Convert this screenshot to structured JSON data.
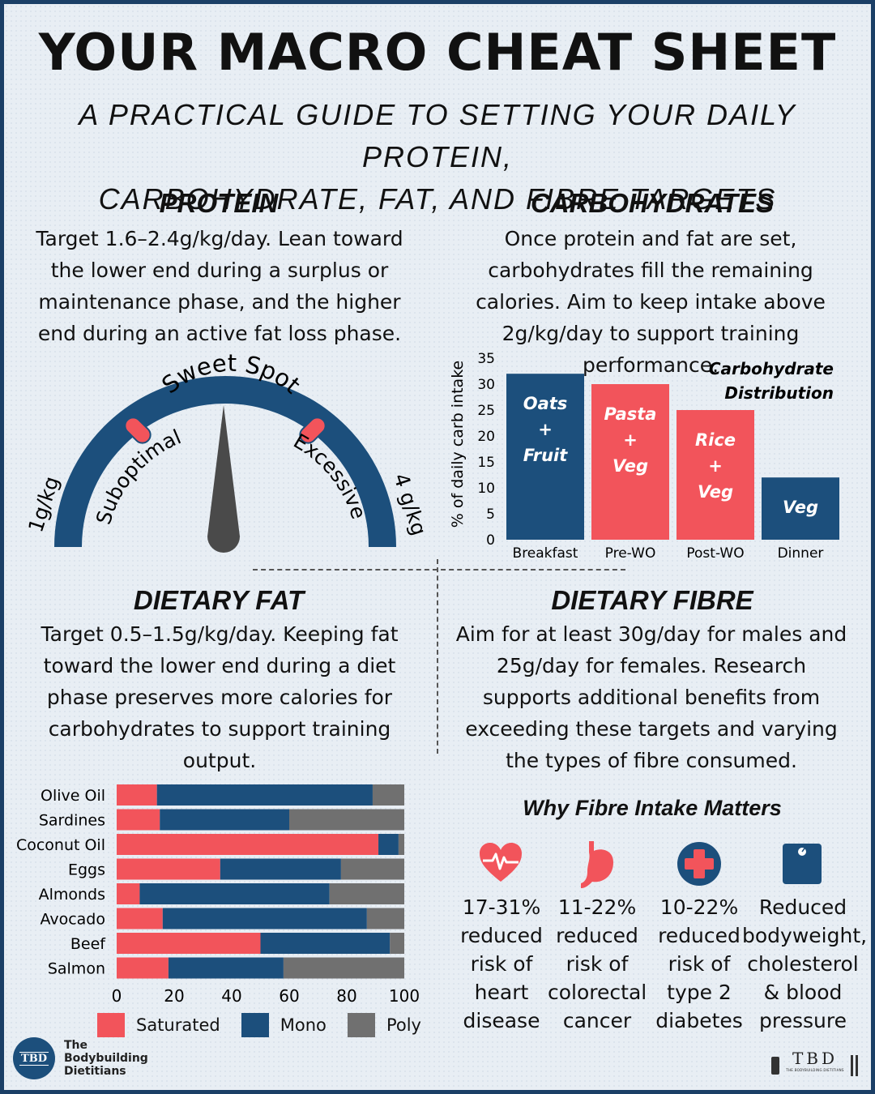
{
  "header": {
    "title": "YOUR MACRO CHEAT SHEET",
    "subtitle_line1": "A PRACTICAL GUIDE TO SETTING YOUR DAILY PROTEIN,",
    "subtitle_line2": "CARBOHYDRATE, FAT, AND FIBRE TARGETS"
  },
  "protein": {
    "heading": "PROTEIN",
    "body": "Target 1.6–2.4g/kg/day. Lean toward the lower end during a surplus or maintenance phase, and the higher end during an active fat loss phase.",
    "gauge": {
      "top_label": "Sweet Spot",
      "left_label": "1g/kg",
      "right_label": "4 g/kg",
      "suboptimal_label": "Suboptimal",
      "excessive_label": "Excessive"
    }
  },
  "carbs": {
    "heading": "CARBOHYDRATES",
    "body": "Once protein and fat are set, carbohydrates fill the remaining calories. Aim to keep intake above 2g/kg/day to support training performance."
  },
  "fat": {
    "heading": "DIETARY FAT",
    "body": "Target 0.5–1.5g/kg/day. Keeping fat toward the lower end during a diet phase preserves more calories for carbohydrates to support training output."
  },
  "fibre": {
    "heading": "DIETARY FIBRE",
    "body": "Aim for at least 30g/day for males and 25g/day for females. Research supports additional benefits from exceeding these targets and varying the types of fibre consumed.",
    "why_heading": "Why Fibre Intake Matters",
    "benefits": [
      {
        "icon": "heart-icon",
        "lines": [
          "17-31%",
          "reduced",
          "risk of",
          "heart",
          "disease"
        ]
      },
      {
        "icon": "stomach-icon",
        "lines": [
          "11-22%",
          "reduced",
          "risk of",
          "colorectal",
          "cancer"
        ]
      },
      {
        "icon": "medical-cross-icon",
        "lines": [
          "10-22%",
          "reduced",
          "risk of",
          "type 2",
          "diabetes"
        ]
      },
      {
        "icon": "scale-icon",
        "lines": [
          "Reduced",
          "bodyweight,",
          "cholesterol",
          "& blood",
          "pressure"
        ]
      }
    ]
  },
  "colors": {
    "navy": "#1c4f7c",
    "red": "#f2545b",
    "gray": "#707070",
    "frame": "#1b3f66"
  },
  "chart_data": [
    {
      "type": "bar",
      "title": "Carbohydrate Distribution",
      "ylabel": "% of daily carb intake",
      "xlabel": "",
      "ylim": [
        0,
        35
      ],
      "yticks": [
        0,
        5,
        10,
        15,
        20,
        25,
        30,
        35
      ],
      "categories": [
        "Breakfast",
        "Pre-WO",
        "Post-WO",
        "Dinner"
      ],
      "values": [
        32,
        30,
        25,
        12
      ],
      "bar_labels": [
        [
          "Oats",
          "+",
          "Fruit"
        ],
        [
          "Pasta",
          "+",
          "Veg"
        ],
        [
          "Rice",
          "+",
          "Veg"
        ],
        [
          "Veg"
        ]
      ],
      "bar_colors": [
        "navy",
        "red",
        "red",
        "navy"
      ]
    },
    {
      "type": "bar",
      "orientation": "horizontal",
      "stacked": true,
      "title": "",
      "xlim": [
        0,
        100
      ],
      "xticks": [
        0,
        20,
        40,
        60,
        80,
        100
      ],
      "categories": [
        "Olive Oil",
        "Sardines",
        "Coconut Oil",
        "Eggs",
        "Almonds",
        "Avocado",
        "Beef",
        "Salmon"
      ],
      "series": [
        {
          "name": "Saturated",
          "color": "red",
          "values": [
            14,
            15,
            91,
            36,
            8,
            16,
            50,
            18
          ]
        },
        {
          "name": "Mono",
          "color": "navy",
          "values": [
            75,
            45,
            7,
            42,
            66,
            71,
            45,
            40
          ]
        },
        {
          "name": "Poly",
          "color": "gray",
          "values": [
            11,
            40,
            2,
            22,
            26,
            13,
            5,
            42
          ]
        }
      ],
      "legend": "bottom"
    }
  ],
  "footer": {
    "logo_badge": "TBD",
    "org_line1": "The",
    "org_line2": "Bodybuilding",
    "org_line3": "Dietitians",
    "right_logo": "TBD",
    "right_logo_small": "THE BODYBUILDING DIETITIANS"
  }
}
